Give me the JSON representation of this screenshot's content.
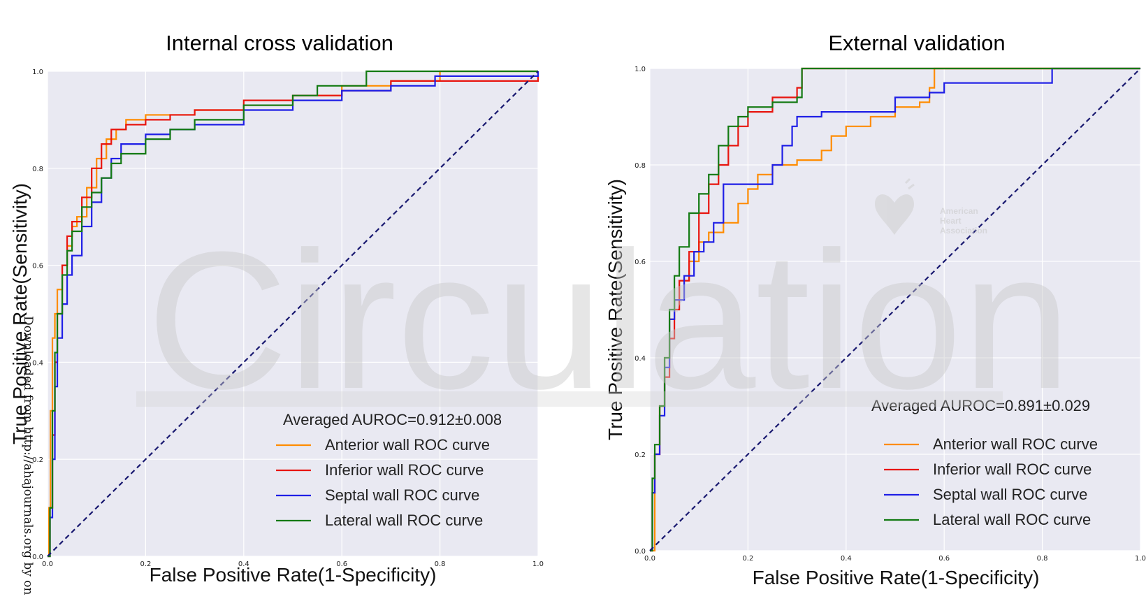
{
  "chart_data": [
    {
      "type": "line",
      "title": "Internal cross validation",
      "xlabel": "False Positive Rate(1-Specificity)",
      "ylabel": "True Positive Rate(Sensitivity)",
      "xlim": [
        0,
        1
      ],
      "ylim": [
        0,
        1
      ],
      "xticks": [
        "0.0",
        "0.2",
        "0.4",
        "0.6",
        "0.8",
        "1.0"
      ],
      "yticks": [
        "0.0",
        "0.2",
        "0.4",
        "0.6",
        "0.8",
        "1.0"
      ],
      "grid": true,
      "legend_position": "lower-right",
      "legend_title": "Averaged AUROC=0.912±0.008",
      "series": [
        {
          "name": "Anterior wall ROC curve",
          "color": "#ff8c00",
          "x": [
            0,
            0.003,
            0.006,
            0.01,
            0.015,
            0.02,
            0.03,
            0.04,
            0.05,
            0.06,
            0.08,
            0.1,
            0.12,
            0.14,
            0.16,
            0.2,
            0.25,
            0.3,
            0.4,
            0.5,
            0.6,
            0.7,
            0.8,
            1.0
          ],
          "y": [
            0,
            0.1,
            0.3,
            0.45,
            0.5,
            0.55,
            0.6,
            0.64,
            0.68,
            0.7,
            0.76,
            0.82,
            0.86,
            0.88,
            0.9,
            0.91,
            0.91,
            0.92,
            0.93,
            0.95,
            0.97,
            0.98,
            1.0,
            1.0
          ]
        },
        {
          "name": "Inferior wall ROC curve",
          "color": "#e8150f",
          "x": [
            0,
            0.005,
            0.01,
            0.015,
            0.02,
            0.03,
            0.04,
            0.05,
            0.07,
            0.09,
            0.11,
            0.13,
            0.16,
            0.2,
            0.25,
            0.3,
            0.4,
            0.5,
            0.6,
            0.7,
            1.0
          ],
          "y": [
            0,
            0.1,
            0.25,
            0.4,
            0.5,
            0.6,
            0.66,
            0.69,
            0.74,
            0.8,
            0.85,
            0.88,
            0.89,
            0.9,
            0.91,
            0.92,
            0.94,
            0.95,
            0.96,
            0.98,
            1.0
          ]
        },
        {
          "name": "Septal wall ROC curve",
          "color": "#1f1fe6",
          "x": [
            0,
            0.005,
            0.01,
            0.015,
            0.02,
            0.03,
            0.04,
            0.05,
            0.07,
            0.09,
            0.11,
            0.13,
            0.15,
            0.2,
            0.25,
            0.3,
            0.4,
            0.5,
            0.6,
            0.7,
            0.79,
            1.0
          ],
          "y": [
            0,
            0.08,
            0.2,
            0.35,
            0.45,
            0.52,
            0.58,
            0.62,
            0.68,
            0.73,
            0.78,
            0.82,
            0.85,
            0.87,
            0.88,
            0.89,
            0.92,
            0.94,
            0.96,
            0.97,
            0.99,
            1.0
          ]
        },
        {
          "name": "Lateral wall ROC curve",
          "color": "#137a13",
          "x": [
            0,
            0.005,
            0.01,
            0.015,
            0.02,
            0.03,
            0.04,
            0.05,
            0.07,
            0.09,
            0.11,
            0.13,
            0.15,
            0.2,
            0.25,
            0.3,
            0.4,
            0.5,
            0.55,
            0.65,
            1.0
          ],
          "y": [
            0,
            0.1,
            0.3,
            0.42,
            0.5,
            0.58,
            0.63,
            0.67,
            0.72,
            0.75,
            0.78,
            0.81,
            0.83,
            0.86,
            0.88,
            0.9,
            0.93,
            0.95,
            0.97,
            1.0,
            1.0
          ]
        },
        {
          "name": "",
          "color": "#191970",
          "dashed": true,
          "x": [
            0,
            1
          ],
          "y": [
            0,
            1
          ]
        }
      ]
    },
    {
      "type": "line",
      "title": "External validation",
      "xlabel": "False Positive Rate(1-Specificity)",
      "ylabel": "True Positive Rate(Sensitivity)",
      "xlim": [
        0,
        1
      ],
      "ylim": [
        0,
        1
      ],
      "xticks": [
        "0.0",
        "0.2",
        "0.4",
        "0.6",
        "0.8",
        "1.0"
      ],
      "yticks": [
        "0.0",
        "0.2",
        "0.4",
        "0.6",
        "0.8",
        "1.0"
      ],
      "grid": true,
      "legend_position": "lower-right",
      "legend_title": "Averaged AUROC=0.891±0.029",
      "series": [
        {
          "name": "Anterior wall ROC curve",
          "color": "#ff8c00",
          "x": [
            0,
            0.01,
            0.02,
            0.03,
            0.04,
            0.05,
            0.06,
            0.08,
            0.1,
            0.12,
            0.15,
            0.18,
            0.2,
            0.22,
            0.25,
            0.3,
            0.35,
            0.37,
            0.4,
            0.45,
            0.5,
            0.55,
            0.57,
            0.58,
            1.0
          ],
          "y": [
            0,
            0.2,
            0.3,
            0.4,
            0.48,
            0.52,
            0.56,
            0.6,
            0.64,
            0.66,
            0.68,
            0.72,
            0.75,
            0.78,
            0.8,
            0.81,
            0.83,
            0.86,
            0.88,
            0.9,
            0.92,
            0.93,
            0.96,
            1.0,
            1.0
          ]
        },
        {
          "name": "Inferior wall ROC curve",
          "color": "#e8150f",
          "x": [
            0,
            0.005,
            0.01,
            0.02,
            0.03,
            0.04,
            0.05,
            0.06,
            0.08,
            0.1,
            0.12,
            0.14,
            0.16,
            0.18,
            0.2,
            0.25,
            0.3,
            0.31,
            1.0
          ],
          "y": [
            0,
            0.12,
            0.2,
            0.3,
            0.36,
            0.44,
            0.5,
            0.56,
            0.62,
            0.7,
            0.76,
            0.8,
            0.84,
            0.88,
            0.91,
            0.94,
            0.96,
            1.0,
            1.0
          ]
        },
        {
          "name": "Septal wall ROC curve",
          "color": "#1f1fe6",
          "x": [
            0,
            0.005,
            0.01,
            0.02,
            0.03,
            0.04,
            0.05,
            0.07,
            0.09,
            0.11,
            0.13,
            0.15,
            0.2,
            0.25,
            0.27,
            0.29,
            0.3,
            0.35,
            0.45,
            0.5,
            0.57,
            0.6,
            0.7,
            0.81,
            0.82,
            1.0
          ],
          "y": [
            0,
            0.12,
            0.2,
            0.28,
            0.38,
            0.48,
            0.52,
            0.57,
            0.62,
            0.64,
            0.68,
            0.76,
            0.76,
            0.8,
            0.84,
            0.88,
            0.9,
            0.91,
            0.91,
            0.94,
            0.95,
            0.97,
            0.97,
            0.97,
            1.0,
            1.0
          ]
        },
        {
          "name": "Lateral wall ROC curve",
          "color": "#137a13",
          "x": [
            0,
            0.005,
            0.01,
            0.02,
            0.03,
            0.04,
            0.05,
            0.06,
            0.08,
            0.1,
            0.12,
            0.14,
            0.16,
            0.18,
            0.2,
            0.25,
            0.3,
            0.31,
            1.0
          ],
          "y": [
            0,
            0.15,
            0.22,
            0.3,
            0.4,
            0.5,
            0.57,
            0.63,
            0.7,
            0.74,
            0.78,
            0.84,
            0.88,
            0.9,
            0.92,
            0.93,
            0.94,
            1.0,
            1.0
          ]
        },
        {
          "name": "",
          "color": "#191970",
          "dashed": true,
          "x": [
            0,
            1
          ],
          "y": [
            0,
            1
          ]
        }
      ]
    }
  ],
  "watermark": {
    "text": "Circulation",
    "logo_text": [
      "American",
      "Heart",
      "Association"
    ]
  },
  "side_note": "Downloaded from http://ahajournals.org by on"
}
